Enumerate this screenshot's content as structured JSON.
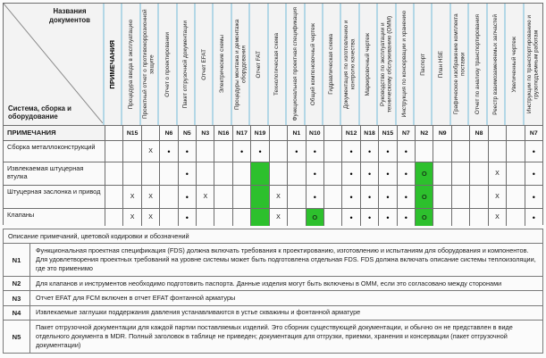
{
  "colors": {
    "green": "#2dc02d",
    "header_separator": "#b3d7e6"
  },
  "symbols": {
    "dot": "•",
    "x": "X",
    "o": "O"
  },
  "corner": {
    "top": "Названия документов",
    "bottom": "Система, сборка и оборудование"
  },
  "notes_row_label": "ПРИМЕЧАНИЯ",
  "columns": [
    {
      "label": "ПРИМЕЧАНИЯ",
      "note": "",
      "bold": true
    },
    {
      "label": "Процедура ввода в эксплуатацию",
      "note": "N15"
    },
    {
      "label": "Проектный отчет о противокоррозионной защите",
      "note": ""
    },
    {
      "label": "Отчет о проектировании",
      "note": "N6"
    },
    {
      "label": "Пакет отгрузочной документации",
      "note": "N5"
    },
    {
      "label": "Отчет EFAT",
      "note": "N3"
    },
    {
      "label": "Электрические схемы",
      "note": "N16"
    },
    {
      "label": "Процедуры монтажа и демонтажа оборудования",
      "note": "N17"
    },
    {
      "label": "Отчет FAT",
      "note": "N19"
    },
    {
      "label": "Технологическая схема",
      "note": ""
    },
    {
      "label": "Функциональная проектная спецификация",
      "note": "N1"
    },
    {
      "label": "Общий компоновочный чертеж",
      "note": "N10"
    },
    {
      "label": "Гидравлическая схема",
      "note": ""
    },
    {
      "label": "Документация по изготовлению и контролю качества",
      "note": "N12"
    },
    {
      "label": "Маркировочный чертеж",
      "note": "N18"
    },
    {
      "label": "Руководство по эксплуатации и техническому обслуживанию (OMM)",
      "note": "N15"
    },
    {
      "label": "Инструкция по консервации и хранению",
      "note": "N7"
    },
    {
      "label": "Паспорт",
      "note": "N2"
    },
    {
      "label": "План HSE",
      "note": "N9"
    },
    {
      "label": "Графическое изображение комплекта поставки",
      "note": ""
    },
    {
      "label": "Отчет по анализу транспортирования",
      "note": "N8"
    },
    {
      "label": "Реестр взаимозаменяемых запчастей",
      "note": ""
    },
    {
      "label": "Увеличенный чертеж",
      "note": ""
    },
    {
      "label": "Инструкции по транспортированию и грузоподъемным работам",
      "note": "N7"
    }
  ],
  "rows": [
    {
      "label": "Сборка металлоконструкций",
      "cells": [
        "",
        "",
        "x",
        "dot",
        "dot",
        "",
        "",
        "dot",
        "dot",
        "",
        "dot",
        "dot",
        "",
        "dot",
        "dot",
        "dot",
        "dot",
        "",
        "",
        "",
        "",
        "",
        "",
        "dot"
      ]
    },
    {
      "label": "Извлекаемая штуцерная втулка",
      "cells": [
        "",
        "",
        "",
        "",
        "dot",
        "",
        "",
        "",
        "green",
        "",
        "",
        "dot",
        "",
        "dot",
        "dot",
        "dot",
        "dot",
        "greenO",
        "",
        "",
        "",
        "x",
        "",
        "dot"
      ]
    },
    {
      "label": "Штуцерная заслонка и привод",
      "cells": [
        "",
        "x",
        "x",
        "",
        "dot",
        "x",
        "",
        "",
        "green",
        "x",
        "",
        "dot",
        "",
        "dot",
        "dot",
        "dot",
        "dot",
        "greenO",
        "",
        "",
        "",
        "x",
        "",
        "dot"
      ]
    },
    {
      "label": "Клапаны",
      "cells": [
        "",
        "x",
        "x",
        "",
        "dot",
        "",
        "",
        "",
        "green",
        "x",
        "",
        "greenO",
        "",
        "dot",
        "dot",
        "dot",
        "dot",
        "greenO",
        "",
        "",
        "",
        "x",
        "",
        "dot"
      ]
    }
  ],
  "legend": {
    "title": "Описание примечаний, цветовой кодировки и обозначений",
    "notes": [
      {
        "id": "N1",
        "text": "Функциональная проектная спецификация (FDS) должна включать требования к проектированию, изготовлению и испытаниям для оборудования и компонентов. Для удовлетворения проектных требований на уровне системы может быть подготовлена отдельная FDS. FDS должна включать описание системы теплоизоляции, где это применимо"
      },
      {
        "id": "N2",
        "text": "Для клапанов и инструментов необходимо подготовить паспорта. Данные изделия могут быть включены в OMM, если это согласовано между сторонами"
      },
      {
        "id": "N3",
        "text": "Отчет EFAT для FCM включен в отчет EFAT фонтанной арматуры"
      },
      {
        "id": "N4",
        "text": "Извлекаемые заглушки поддержания давления устанавливаются в устье скважины и фонтанной арматуре"
      },
      {
        "id": "N5",
        "text": "Пакет отгрузочной документации для каждой партии поставляемых изделий. Это сборник существующей документации, и обычно он не представлен в виде отдельного документа в MDR. Полный заголовок в таблице не приведен; документация для отгрузки, приемки, хранения и консервации (пакет отгрузочной документации)"
      }
    ]
  }
}
